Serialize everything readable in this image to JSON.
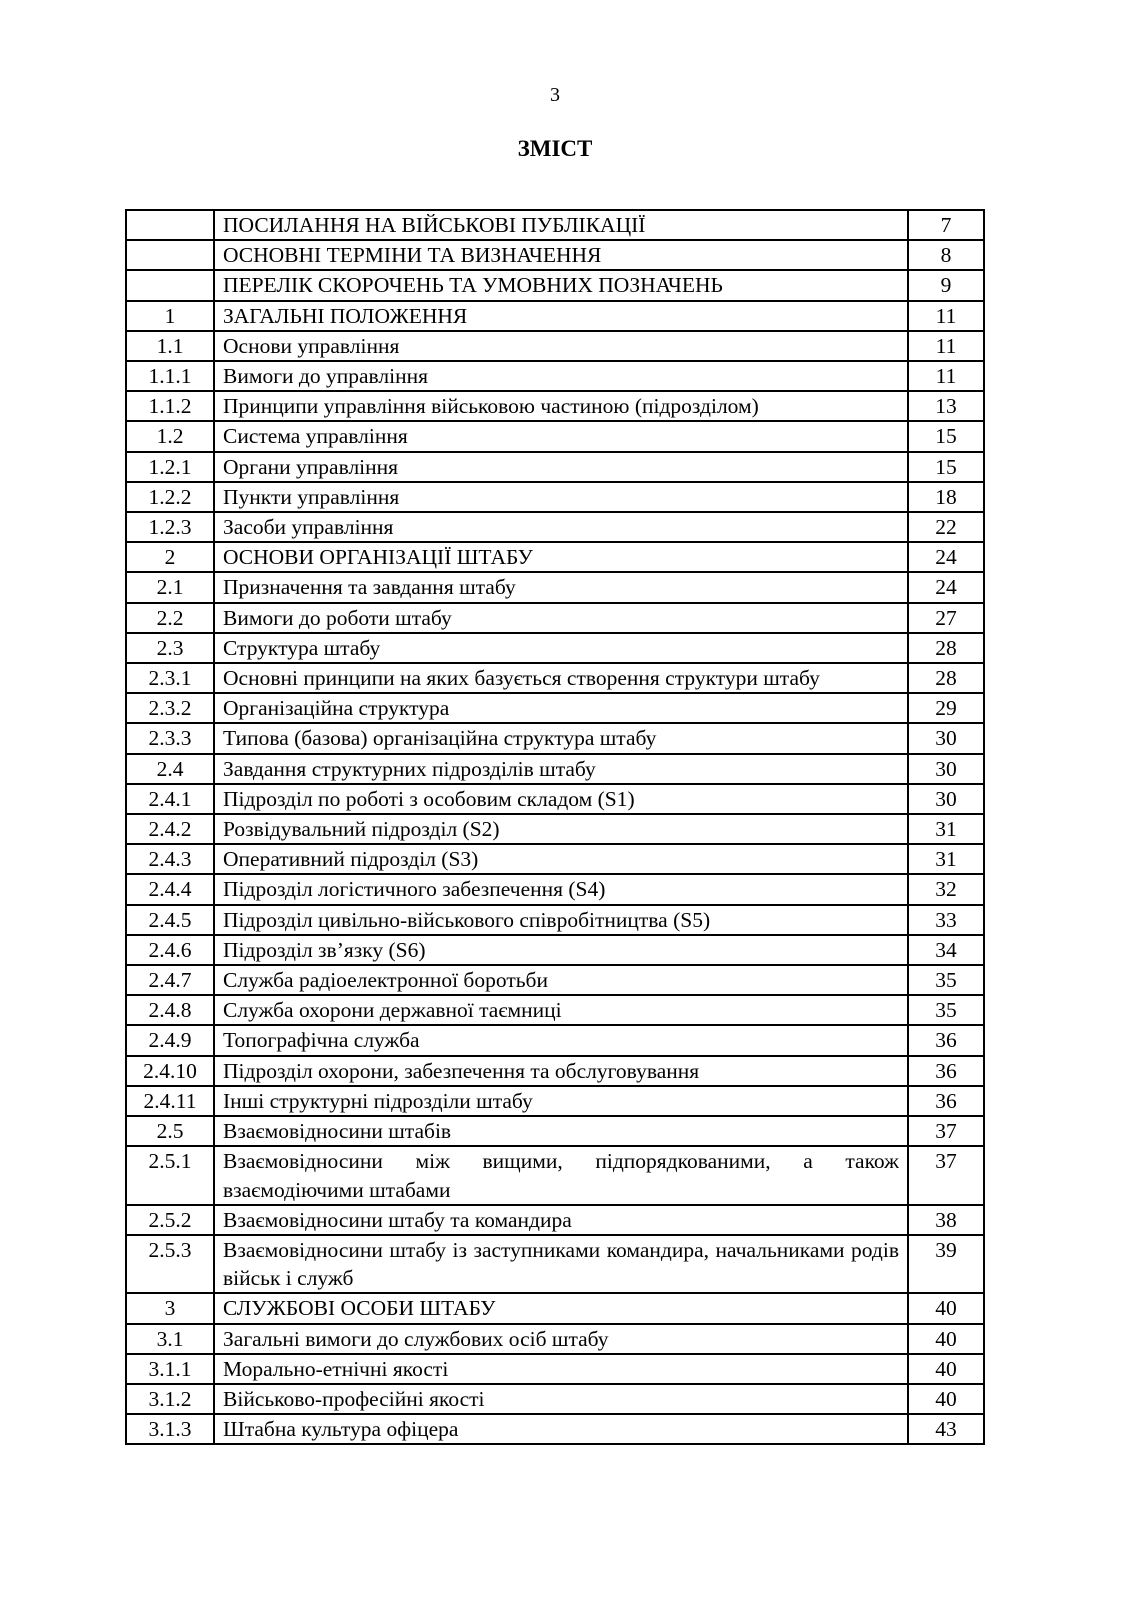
{
  "page_number": "3",
  "title": "ЗМІСТ",
  "toc": [
    {
      "num": "",
      "text": "ПОСИЛАННЯ НА ВІЙСЬКОВІ ПУБЛІКАЦІЇ",
      "page": "7"
    },
    {
      "num": "",
      "text": "ОСНОВНІ ТЕРМІНИ ТА ВИЗНАЧЕННЯ",
      "page": "8"
    },
    {
      "num": "",
      "text": "ПЕРЕЛІК СКОРОЧЕНЬ ТА УМОВНИХ ПОЗНАЧЕНЬ",
      "page": "9"
    },
    {
      "num": "1",
      "text": "ЗАГАЛЬНІ ПОЛОЖЕННЯ",
      "page": "11"
    },
    {
      "num": "1.1",
      "text": "Основи управління",
      "page": "11"
    },
    {
      "num": "1.1.1",
      "text": "Вимоги до управління",
      "page": "11"
    },
    {
      "num": "1.1.2",
      "text": "Принципи управління військовою частиною (підрозділом)",
      "page": "13"
    },
    {
      "num": "1.2",
      "text": "Система управління",
      "page": "15"
    },
    {
      "num": "1.2.1",
      "text": "Органи управління",
      "page": "15"
    },
    {
      "num": "1.2.2",
      "text": "Пункти управління",
      "page": "18"
    },
    {
      "num": "1.2.3",
      "text": "Засоби управління",
      "page": "22"
    },
    {
      "num": "2",
      "text": "ОСНОВИ ОРГАНІЗАЦІЇ ШТАБУ",
      "page": "24"
    },
    {
      "num": "2.1",
      "text": "Призначення та завдання штабу",
      "page": "24"
    },
    {
      "num": "2.2",
      "text": "Вимоги до роботи штабу",
      "page": "27"
    },
    {
      "num": "2.3",
      "text": "Структура штабу",
      "page": "28"
    },
    {
      "num": "2.3.1",
      "text": "Основні принципи на яких базується створення структури штабу",
      "page": "28"
    },
    {
      "num": "2.3.2",
      "text": "Організаційна структура",
      "page": "29"
    },
    {
      "num": "2.3.3",
      "text": "Типова (базова) організаційна структура штабу",
      "page": "30"
    },
    {
      "num": "2.4",
      "text": "Завдання структурних підрозділів штабу",
      "page": "30"
    },
    {
      "num": "2.4.1",
      "text": "Підрозділ по роботі з особовим складом (S1)",
      "page": "30"
    },
    {
      "num": "2.4.2",
      "text": "Розвідувальний підрозділ (S2)",
      "page": "31"
    },
    {
      "num": "2.4.3",
      "text": "Оперативний підрозділ (S3)",
      "page": "31"
    },
    {
      "num": "2.4.4",
      "text": "Підрозділ логістичного забезпечення (S4)",
      "page": "32"
    },
    {
      "num": "2.4.5",
      "text": "Підрозділ цивільно-військового співробітництва (S5)",
      "page": "33"
    },
    {
      "num": "2.4.6",
      "text": "Підрозділ зв’язку (S6)",
      "page": "34"
    },
    {
      "num": "2.4.7",
      "text": "Служба радіоелектронної боротьби",
      "page": "35"
    },
    {
      "num": "2.4.8",
      "text": "Служба охорони державної таємниці",
      "page": "35"
    },
    {
      "num": "2.4.9",
      "text": "Топографічна служба",
      "page": "36"
    },
    {
      "num": "2.4.10",
      "text": "Підрозділ охорони, забезпечення та обслуговування",
      "page": "36"
    },
    {
      "num": "2.4.11",
      "text": "Інші структурні підрозділи штабу",
      "page": "36"
    },
    {
      "num": "2.5",
      "text": "Взаємовідносини штабів",
      "page": "37"
    },
    {
      "num": "2.5.1",
      "text": "Взаємовідносини між вищими, підпорядкованими, а також взаємодіючими штабами",
      "page": "37"
    },
    {
      "num": "2.5.2",
      "text": "Взаємовідносини штабу та командира",
      "page": "38"
    },
    {
      "num": "2.5.3",
      "text": "Взаємовідносини штабу із заступниками командира, начальниками родів військ і служб",
      "page": "39"
    },
    {
      "num": "3",
      "text": "СЛУЖБОВІ ОСОБИ ШТАБУ",
      "page": "40"
    },
    {
      "num": "3.1",
      "text": "Загальні вимоги до службових осіб штабу",
      "page": "40"
    },
    {
      "num": "3.1.1",
      "text": "Морально-етнічні якості",
      "page": "40"
    },
    {
      "num": "3.1.2",
      "text": "Військово-професійні якості",
      "page": "40"
    },
    {
      "num": "3.1.3",
      "text": "Штабна культура офіцера",
      "page": "43"
    }
  ]
}
